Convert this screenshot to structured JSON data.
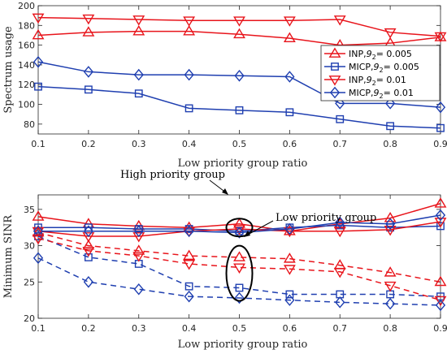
{
  "chart_data": [
    {
      "type": "line",
      "xlabel": "Low priority group ratio",
      "ylabel": "Spectrum usage",
      "xlim": [
        0.1,
        0.9
      ],
      "ylim": [
        70,
        200
      ],
      "xticks": [
        "0.1",
        "0.2",
        "0.3",
        "0.4",
        "0.5",
        "0.6",
        "0.7",
        "0.8",
        "0.9"
      ],
      "yticks": [
        "80",
        "100",
        "120",
        "140",
        "160",
        "180",
        "200"
      ],
      "x": [
        0.1,
        0.2,
        0.3,
        0.4,
        0.5,
        0.6,
        0.7,
        0.8,
        0.9
      ],
      "grid": false,
      "legend_position": "right",
      "series": [
        {
          "name": "INP,g2=0.005",
          "label_main": "INP,",
          "label_sym": "9",
          "label_sub": "2",
          "label_rest": "= 0.005",
          "color": "#e8141b",
          "marker": "triangle-up",
          "dash": "solid",
          "values": [
            170,
            173,
            174,
            174,
            171,
            167,
            160,
            162,
            168
          ]
        },
        {
          "name": "MICP,g2=0.005",
          "label_main": "MICP,",
          "label_sym": "9",
          "label_sub": "2",
          "label_rest": "= 0.005",
          "color": "#1f3fb0",
          "marker": "square",
          "dash": "solid",
          "values": [
            118,
            115,
            111,
            96,
            94,
            92,
            85,
            78,
            76
          ]
        },
        {
          "name": "INP,g2=0.01",
          "label_main": "INP,",
          "label_sym": "9",
          "label_sub": "2",
          "label_rest": "= 0.01",
          "color": "#e8141b",
          "marker": "triangle-down",
          "dash": "solid",
          "values": [
            188,
            187,
            186,
            185,
            185,
            185,
            186,
            173,
            169
          ]
        },
        {
          "name": "MICP,g2=0.01",
          "label_main": "MICP,",
          "label_sym": "9",
          "label_sub": "2",
          "label_rest": "= 0.01",
          "color": "#1f3fb0",
          "marker": "diamond",
          "dash": "solid",
          "values": [
            143,
            133,
            130,
            130,
            129,
            128,
            101,
            101,
            97
          ]
        }
      ]
    },
    {
      "type": "line",
      "xlabel": "Low priority group ratio",
      "ylabel": "Minimum SINR",
      "xlim": [
        0.1,
        0.9
      ],
      "ylim": [
        20,
        37
      ],
      "xticks": [
        "0.1",
        "0.2",
        "0.3",
        "0.4",
        "0.5",
        "0.6",
        "0.7",
        "0.8",
        "0.9"
      ],
      "yticks": [
        "20",
        "25",
        "30",
        "35"
      ],
      "x": [
        0.1,
        0.2,
        0.3,
        0.4,
        0.5,
        0.6,
        0.7,
        0.8,
        0.9
      ],
      "grid": false,
      "annotations": [
        {
          "text": "High priority group"
        },
        {
          "text": "Low priority group"
        }
      ],
      "series": [
        {
          "color": "#e8141b",
          "marker": "triangle-up",
          "dash": "solid",
          "values": [
            34.0,
            33.0,
            32.7,
            32.5,
            33.0,
            32.0,
            33.0,
            33.8,
            35.8
          ]
        },
        {
          "color": "#1f3fb0",
          "marker": "square",
          "dash": "solid",
          "values": [
            32.5,
            32.5,
            32.3,
            32.3,
            32.0,
            32.5,
            32.8,
            32.5,
            32.7
          ]
        },
        {
          "color": "#e8141b",
          "marker": "triangle-down",
          "dash": "solid",
          "values": [
            32.0,
            31.3,
            31.3,
            32.0,
            32.3,
            32.0,
            32.0,
            32.2,
            33.3
          ]
        },
        {
          "color": "#1f3fb0",
          "marker": "diamond",
          "dash": "solid",
          "values": [
            32.0,
            32.0,
            32.0,
            32.0,
            31.8,
            32.3,
            33.2,
            33.0,
            34.2
          ]
        },
        {
          "color": "#e8141b",
          "marker": "triangle-up",
          "dash": "dashed",
          "values": [
            31.8,
            30.0,
            29.3,
            28.6,
            28.4,
            28.2,
            27.3,
            26.3,
            25.0
          ]
        },
        {
          "color": "#1f3fb0",
          "marker": "square",
          "dash": "dashed",
          "values": [
            31.3,
            28.4,
            27.5,
            24.4,
            24.2,
            23.3,
            23.3,
            23.3,
            23.0
          ]
        },
        {
          "color": "#e8141b",
          "marker": "triangle-down",
          "dash": "dashed",
          "values": [
            31.0,
            29.3,
            28.6,
            27.5,
            27.0,
            26.8,
            26.4,
            24.5,
            22.5
          ]
        },
        {
          "color": "#1f3fb0",
          "marker": "diamond",
          "dash": "dashed",
          "values": [
            28.3,
            25.0,
            24.0,
            23.0,
            22.8,
            22.5,
            22.2,
            22.0,
            21.8
          ]
        }
      ]
    }
  ]
}
